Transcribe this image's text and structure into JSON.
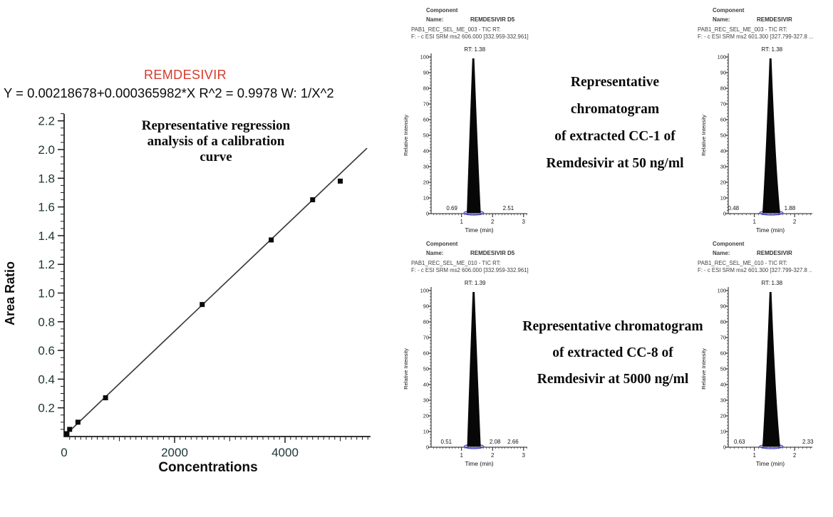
{
  "background": "#ffffff",
  "annotations": [
    {
      "lines": [
        "Representative chromatogram",
        "of extracted  CC-1 of",
        "Remdesivir at 50 ng/ml"
      ]
    },
    {
      "lines": [
        "Representative chromatogram",
        "of extracted  CC-8 of",
        "Remdesivir at 5000 ng/ml"
      ]
    }
  ],
  "chart_data": [
    {
      "type": "scatter",
      "title": "REMDESIVIR",
      "title_color": "#d63a2b",
      "equation": "Y = 0.00218678+0.000365982*X   R^2 = 0.9978   W: 1/X^2",
      "weighting": "W: 1/X^2",
      "r_squared": 0.9978,
      "annotation": [
        "Representative regression",
        "analysis of a calibration",
        "curve"
      ],
      "xlabel": "Concentrations",
      "ylabel": "Area Ratio",
      "xlim": [
        0,
        5550
      ],
      "ylim": [
        0,
        2.25
      ],
      "x_ticks": [
        0,
        2000,
        4000
      ],
      "y_ticks": [
        0.2,
        0.4,
        0.6,
        0.8,
        1.0,
        1.2,
        1.4,
        1.6,
        1.8,
        2.0,
        2.2
      ],
      "points": [
        [
          50,
          0.02
        ],
        [
          100,
          0.05
        ],
        [
          250,
          0.1
        ],
        [
          750,
          0.27
        ],
        [
          2500,
          0.92
        ],
        [
          3750,
          1.37
        ],
        [
          4500,
          1.65
        ],
        [
          5000,
          1.78
        ]
      ],
      "fit": {
        "intercept": 0.00218678,
        "slope": 0.000365982,
        "x_start": 25,
        "x_end": 5485
      },
      "grid": false,
      "point_color": "#0a0a0a",
      "line_color": "#3d3d3d"
    },
    {
      "type": "area",
      "panel": "top-left",
      "component_label": "Component",
      "name_label": "Name:",
      "component_name": "REMDESIVIR D5",
      "file_line1": "PAB1_REC_SEL_ME_003 - TIC RT:",
      "file_line2": "F: - c ESI SRM ms2 606.000 [332.959-332.961]",
      "rt_label": "RT: 1.38",
      "xlabel": "Time (min)",
      "ylabel": "Relative Intensity",
      "ylim": [
        0,
        100
      ],
      "y_tick_step": 10,
      "x_range": [
        0.02,
        3.12
      ],
      "x_ticks": [
        1,
        2,
        3
      ],
      "baseline_labels": [
        "0.69",
        "2.51"
      ],
      "peak": {
        "start": 1.17,
        "apex": 1.38,
        "end": 1.62,
        "height": 100
      },
      "peak_color": "#070707",
      "marker_color": "#4343cd"
    },
    {
      "type": "area",
      "panel": "top-right",
      "component_label": "Component",
      "name_label": "Name:",
      "component_name": "REMDESIVIR",
      "file_line1": "PAB1_REC_SEL_ME_003 - TIC RT:",
      "file_line2": "F: - c ESI SRM ms2 601.300 [327.799-327.8 ...",
      "rt_label": "RT: 1.38",
      "xlabel": "Time (min)",
      "ylabel": "Relative Intensity",
      "ylim": [
        0,
        100
      ],
      "y_tick_step": 10,
      "x_range": [
        0.35,
        2.44
      ],
      "x_ticks": [
        1,
        2
      ],
      "baseline_labels": [
        "0.48",
        "1.88"
      ],
      "peak": {
        "start": 1.2,
        "apex": 1.4,
        "end": 1.64,
        "height": 100
      },
      "peak_color": "#070707",
      "marker_color": "#4343cd"
    },
    {
      "type": "area",
      "panel": "bottom-left",
      "component_label": "Component",
      "name_label": "Name:",
      "component_name": "REMDESIVIR D5",
      "file_line1": "PAB1_REC_SEL_ME_010 - TIC RT:",
      "file_line2": "F: - c ESI SRM ms2 606.000 [332.959-332.961]",
      "rt_label": "RT: 1.39",
      "xlabel": "Time (min)",
      "ylabel": "Relative Intensity",
      "ylim": [
        0,
        100
      ],
      "y_tick_step": 10,
      "x_range": [
        0.02,
        3.12
      ],
      "x_ticks": [
        1,
        2,
        3
      ],
      "baseline_labels": [
        "0.51",
        "2.08",
        "2.66"
      ],
      "peak": {
        "start": 1.18,
        "apex": 1.39,
        "end": 1.62,
        "height": 100
      },
      "peak_color": "#070707",
      "marker_color": "#4343cd"
    },
    {
      "type": "area",
      "panel": "bottom-right",
      "component_label": "Component",
      "name_label": "Name:",
      "component_name": "REMDESIVIR",
      "file_line1": "PAB1_REC_SEL_ME_010 - TIC RT:",
      "file_line2": "F: - c ESI SRM ms2 601.300 [327.799-327.8 ..",
      "rt_label": "RT: 1.38",
      "xlabel": "Time (min)",
      "ylabel": "Relative Intensity",
      "ylim": [
        0,
        100
      ],
      "y_tick_step": 10,
      "x_range": [
        0.35,
        2.44
      ],
      "x_ticks": [
        1,
        2
      ],
      "baseline_labels": [
        "0.63",
        "2.33"
      ],
      "peak": {
        "start": 1.2,
        "apex": 1.4,
        "end": 1.64,
        "height": 100
      },
      "peak_color": "#070707",
      "marker_color": "#4343cd"
    }
  ]
}
